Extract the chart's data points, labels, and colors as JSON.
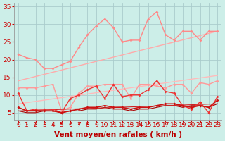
{
  "bg_color": "#cceee8",
  "grid_color": "#aacccc",
  "xlabel": "Vent moyen/en rafales ( km/h )",
  "xlim": [
    -0.5,
    23.5
  ],
  "ylim": [
    3,
    36
  ],
  "yticks": [
    5,
    10,
    15,
    20,
    25,
    30,
    35
  ],
  "xticks": [
    0,
    1,
    2,
    3,
    4,
    5,
    6,
    7,
    8,
    9,
    10,
    11,
    12,
    13,
    14,
    15,
    16,
    17,
    18,
    19,
    20,
    21,
    22,
    23
  ],
  "lines": [
    {
      "x": [
        0,
        1,
        2,
        3,
        4,
        5,
        6,
        7,
        8,
        9,
        10,
        11,
        12,
        13,
        14,
        15,
        16,
        17,
        18,
        19,
        20,
        21,
        22,
        23
      ],
      "y": [
        21.5,
        20.5,
        20.0,
        17.5,
        17.5,
        18.5,
        19.5,
        23.5,
        27.0,
        29.5,
        31.5,
        29.0,
        25.0,
        25.5,
        25.5,
        31.5,
        33.5,
        27.0,
        25.5,
        28.0,
        28.0,
        25.5,
        28.0,
        28.0
      ],
      "color": "#ff8888",
      "lw": 1.0,
      "marker": "D",
      "ms": 2.0,
      "zorder": 3
    },
    {
      "x": [
        0,
        23
      ],
      "y": [
        14.0,
        28.0
      ],
      "color": "#ffaaaa",
      "lw": 1.0,
      "marker": null,
      "ms": 0,
      "zorder": 2
    },
    {
      "x": [
        0,
        23
      ],
      "y": [
        7.5,
        15.5
      ],
      "color": "#ffbbbb",
      "lw": 1.0,
      "marker": null,
      "ms": 0,
      "zorder": 2
    },
    {
      "x": [
        0,
        1,
        2,
        3,
        4,
        5,
        6,
        7,
        8,
        9,
        10,
        11,
        12,
        13,
        14,
        15,
        16,
        17,
        18,
        19,
        20,
        21,
        22,
        23
      ],
      "y": [
        12.0,
        12.0,
        12.0,
        12.5,
        13.0,
        5.5,
        6.5,
        10.5,
        12.5,
        12.5,
        13.0,
        13.0,
        13.0,
        9.0,
        13.0,
        13.0,
        12.5,
        12.0,
        13.0,
        13.0,
        10.5,
        13.5,
        13.0,
        14.0
      ],
      "color": "#ff9999",
      "lw": 1.0,
      "marker": "D",
      "ms": 2.0,
      "zorder": 3
    },
    {
      "x": [
        0,
        1,
        2,
        3,
        4,
        5,
        6,
        7,
        8,
        9,
        10,
        11,
        12,
        13,
        14,
        15,
        16,
        17,
        18,
        19,
        20,
        21,
        22,
        23
      ],
      "y": [
        10.5,
        5.5,
        6.0,
        6.0,
        6.0,
        5.0,
        9.0,
        10.0,
        11.5,
        12.5,
        9.0,
        13.0,
        9.5,
        10.0,
        10.0,
        11.5,
        14.0,
        11.0,
        10.5,
        7.0,
        6.0,
        8.0,
        5.0,
        9.5
      ],
      "color": "#ee3333",
      "lw": 1.0,
      "marker": "D",
      "ms": 2.0,
      "zorder": 4
    },
    {
      "x": [
        0,
        1,
        2,
        3,
        4,
        5,
        6,
        7,
        8,
        9,
        10,
        11,
        12,
        13,
        14,
        15,
        16,
        17,
        18,
        19,
        20,
        21,
        22,
        23
      ],
      "y": [
        6.5,
        5.5,
        5.5,
        5.5,
        5.5,
        5.0,
        5.5,
        6.0,
        6.5,
        6.5,
        7.0,
        6.5,
        6.5,
        6.0,
        6.5,
        6.5,
        7.0,
        7.5,
        7.5,
        7.0,
        6.5,
        7.0,
        6.5,
        8.5
      ],
      "color": "#cc1111",
      "lw": 1.2,
      "marker": "D",
      "ms": 2.0,
      "zorder": 5
    },
    {
      "x": [
        0,
        1,
        2,
        3,
        4,
        5,
        6,
        7,
        8,
        9,
        10,
        11,
        12,
        13,
        14,
        15,
        16,
        17,
        18,
        19,
        20,
        21,
        22,
        23
      ],
      "y": [
        5.5,
        5.0,
        5.0,
        5.5,
        5.5,
        5.0,
        5.5,
        5.5,
        6.0,
        6.0,
        6.5,
        6.0,
        6.0,
        5.5,
        6.0,
        6.0,
        6.5,
        7.0,
        7.0,
        6.5,
        7.0,
        7.0,
        6.5,
        7.5
      ],
      "color": "#aa0000",
      "lw": 0.8,
      "marker": null,
      "ms": 0,
      "zorder": 3
    },
    {
      "x": [
        0,
        23
      ],
      "y": [
        5.5,
        7.5
      ],
      "color": "#cc2222",
      "lw": 0.8,
      "marker": null,
      "ms": 0,
      "zorder": 3
    }
  ],
  "arrow_color": "#cc0000",
  "xlabel_color": "#bb0000",
  "xlabel_fontsize": 7.5,
  "ytick_color": "#cc0000",
  "xtick_color": "#cc0000",
  "tick_fontsize": 6.5
}
